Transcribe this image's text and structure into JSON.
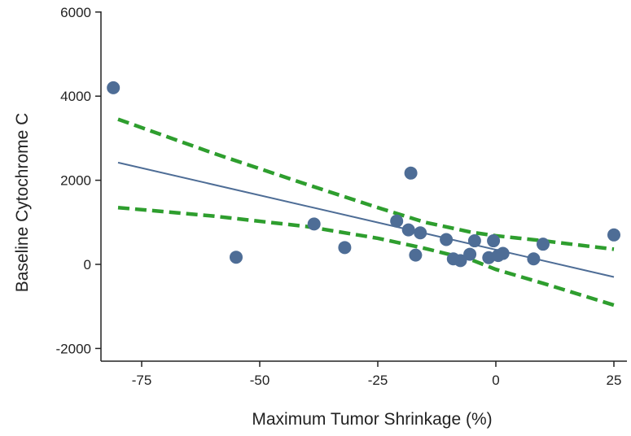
{
  "chart_data": {
    "type": "scatter",
    "title": "",
    "xlabel": "Maximum Tumor Shrinkage (%)",
    "ylabel": "Baseline Cytochrome C",
    "xlim": [
      -82,
      27
    ],
    "ylim": [
      -2100,
      6000
    ],
    "x_ticks": [
      -75,
      -50,
      -25,
      0,
      25
    ],
    "x_tick_labels": [
      "-75",
      "-50",
      "-25",
      "0",
      "25"
    ],
    "y_ticks": [
      6000,
      4000,
      2000,
      0,
      -2000
    ],
    "y_tick_labels": [
      "6000",
      "4000",
      "2000",
      "0",
      "-2000"
    ],
    "grid": false,
    "legend": "none",
    "colors": {
      "points": "#4e6d96",
      "fit_line": "#4e6d96",
      "confidence_band": "#2e9e2e",
      "axes": "#222222"
    },
    "points": [
      {
        "x": -81,
        "y": 4200
      },
      {
        "x": -55,
        "y": 170
      },
      {
        "x": -38.5,
        "y": 960
      },
      {
        "x": -32,
        "y": 400
      },
      {
        "x": -21,
        "y": 1030
      },
      {
        "x": -18,
        "y": 2170
      },
      {
        "x": -18.5,
        "y": 820
      },
      {
        "x": -17,
        "y": 220
      },
      {
        "x": -16,
        "y": 750
      },
      {
        "x": -10.5,
        "y": 590
      },
      {
        "x": -9,
        "y": 130
      },
      {
        "x": -7.5,
        "y": 90
      },
      {
        "x": -5.5,
        "y": 240
      },
      {
        "x": -4.5,
        "y": 560
      },
      {
        "x": -1.5,
        "y": 160
      },
      {
        "x": -0.5,
        "y": 560
      },
      {
        "x": 0.5,
        "y": 210
      },
      {
        "x": 1.5,
        "y": 260
      },
      {
        "x": 8,
        "y": 130
      },
      {
        "x": 10,
        "y": 480
      },
      {
        "x": 25,
        "y": 700
      }
    ],
    "fit_line": {
      "x": [
        -80,
        25
      ],
      "y": [
        2420,
        -300
      ]
    },
    "confidence_upper": {
      "x": [
        -80,
        -60,
        -40,
        -25,
        -15,
        -5,
        0,
        10,
        25
      ],
      "y": [
        3450,
        2650,
        1900,
        1350,
        1000,
        760,
        680,
        560,
        360
      ]
    },
    "confidence_lower": {
      "x": [
        -80,
        -60,
        -40,
        -25,
        -15,
        -5,
        0,
        10,
        25
      ],
      "y": [
        1350,
        1150,
        900,
        620,
        380,
        100,
        -120,
        -450,
        -970
      ]
    }
  }
}
